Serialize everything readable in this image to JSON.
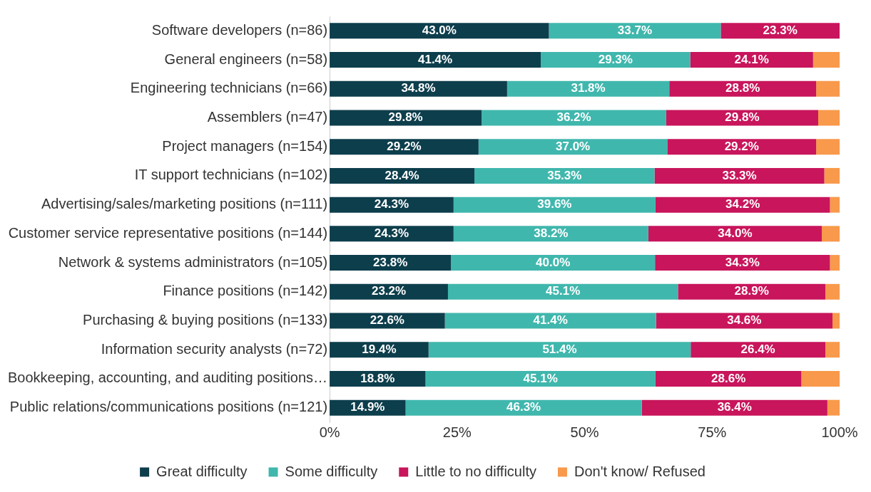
{
  "chart_data": {
    "type": "bar",
    "orientation": "horizontal",
    "stacked": true,
    "legend": "bottom",
    "grid": false,
    "categories": [
      "Software developers (n=86)",
      "General engineers (n=58)",
      "Engineering technicians (n=66)",
      "Assemblers (n=47)",
      "Project managers (n=154)",
      "IT support technicians (n=102)",
      "Advertising/sales/marketing positions (n=111)",
      "Customer service representative positions (n=144)",
      "Network & systems administrators (n=105)",
      "Finance positions (n=142)",
      "Purchasing & buying positions (n=133)",
      "Information security analysts (n=72)",
      "Bookkeeping, accounting, and auditing positions…",
      "Public relations/communications positions (n=121)"
    ],
    "xlim": [
      0,
      100
    ],
    "xticks": [
      {
        "value": 0,
        "label": "0%"
      },
      {
        "value": 25,
        "label": "25%"
      },
      {
        "value": 50,
        "label": "50%"
      },
      {
        "value": 75,
        "label": "75%"
      },
      {
        "value": 100,
        "label": "100%"
      }
    ],
    "series": [
      {
        "name": "Great difficulty",
        "color": "#0d3e4c",
        "values": [
          43.0,
          41.4,
          34.8,
          29.8,
          29.2,
          28.4,
          24.3,
          24.3,
          23.8,
          23.2,
          22.6,
          19.4,
          18.8,
          14.9
        ],
        "value_labels": [
          "43.0%",
          "41.4%",
          "34.8%",
          "29.8%",
          "29.2%",
          "28.4%",
          "24.3%",
          "24.3%",
          "23.8%",
          "23.2%",
          "22.6%",
          "19.4%",
          "18.8%",
          "14.9%"
        ]
      },
      {
        "name": "Some difficulty",
        "color": "#40b7ad",
        "values": [
          33.7,
          29.3,
          31.8,
          36.2,
          37.0,
          35.3,
          39.6,
          38.2,
          40.0,
          45.1,
          41.4,
          51.4,
          45.1,
          46.3
        ],
        "value_labels": [
          "33.7%",
          "29.3%",
          "31.8%",
          "36.2%",
          "37.0%",
          "35.3%",
          "39.6%",
          "38.2%",
          "40.0%",
          "45.1%",
          "41.4%",
          "51.4%",
          "45.1%",
          "46.3%"
        ]
      },
      {
        "name": "Little to no difficulty",
        "color": "#c8155b",
        "values": [
          23.3,
          24.1,
          28.8,
          29.8,
          29.2,
          33.3,
          34.2,
          34.0,
          34.3,
          28.9,
          34.6,
          26.4,
          28.6,
          36.4
        ],
        "value_labels": [
          "23.3%",
          "24.1%",
          "28.8%",
          "29.8%",
          "29.2%",
          "33.3%",
          "34.2%",
          "34.0%",
          "34.3%",
          "28.9%",
          "34.6%",
          "26.4%",
          "28.6%",
          "36.4%"
        ]
      },
      {
        "name": "Don't know/ Refused",
        "color": "#f8994b",
        "values": [
          0,
          5.2,
          4.6,
          4.2,
          4.6,
          3.0,
          1.9,
          3.5,
          1.9,
          2.8,
          1.4,
          2.8,
          7.5,
          2.4
        ]
      }
    ]
  }
}
